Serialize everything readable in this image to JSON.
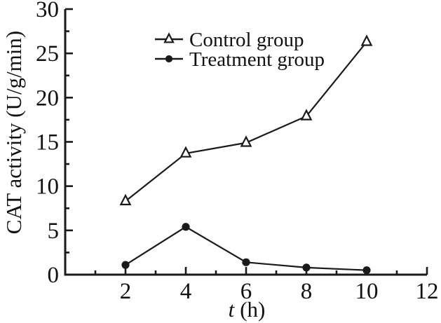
{
  "figure": {
    "background": "#ffffff",
    "text_color": "#111111",
    "line_color": "#1a1a1a"
  },
  "chart_data": {
    "type": "line",
    "title": "",
    "xlabel": "t (h)",
    "xlabel_variable": "t",
    "xlabel_unit": "(h)",
    "ylabel": "CAT activity (U/g/min)",
    "x": [
      2,
      4,
      6,
      8,
      10
    ],
    "series": [
      {
        "name": "Control group",
        "marker": "open-triangle",
        "color": "#1a1a1a",
        "values": [
          8.3,
          13.7,
          14.9,
          17.9,
          26.3
        ]
      },
      {
        "name": "Treatment group",
        "marker": "filled-circle",
        "color": "#1a1a1a",
        "values": [
          1.1,
          5.4,
          1.4,
          0.8,
          0.5
        ]
      }
    ],
    "xlim": [
      0,
      12
    ],
    "ylim": [
      0,
      30
    ],
    "x_major_ticks": [
      2,
      4,
      6,
      8,
      10,
      12
    ],
    "x_minor_ticks": [
      1,
      3,
      5,
      7,
      9,
      11
    ],
    "y_major_ticks": [
      0,
      5,
      10,
      15,
      20,
      25,
      30
    ],
    "y_minor_step": 2.5,
    "grid": false,
    "legend_position": "inside-top-center"
  }
}
